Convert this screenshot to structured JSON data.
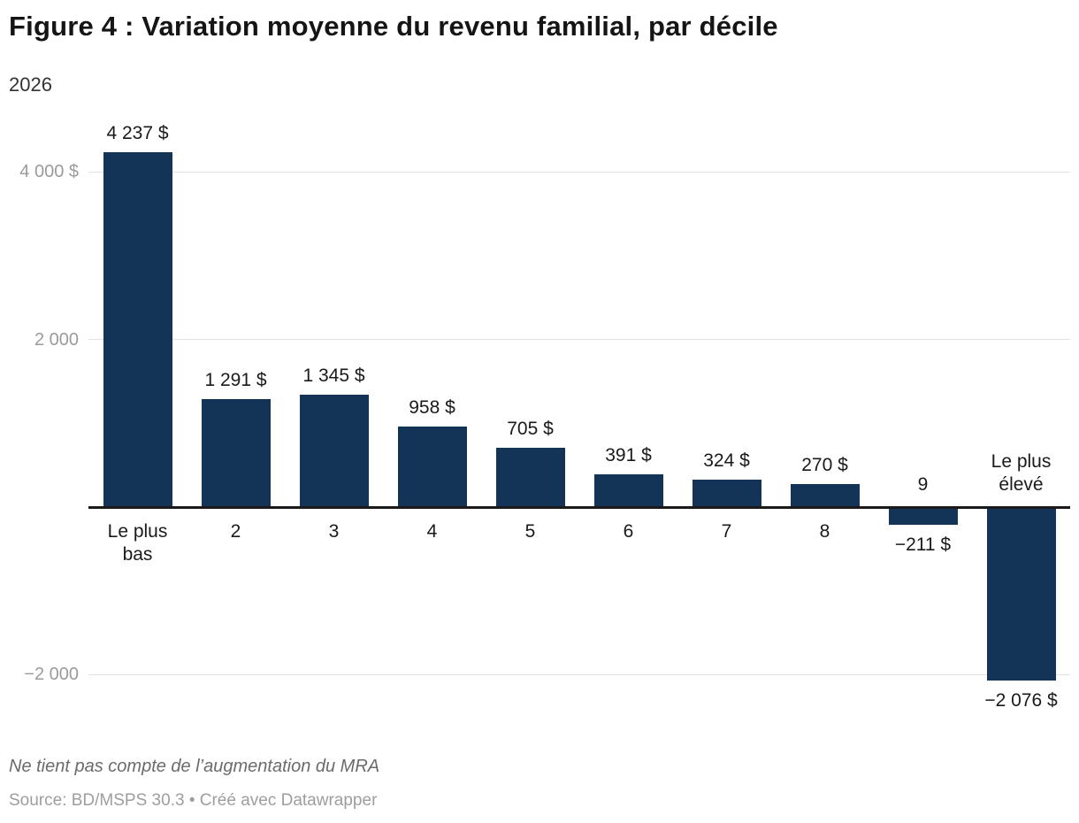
{
  "header": {
    "title": "Figure 4 : Variation moyenne du revenu familial, par décile",
    "subtitle": "2026"
  },
  "chart_data": {
    "type": "bar",
    "title": "Figure 4 : Variation moyenne du revenu familial, par décile",
    "subtitle": "2026",
    "categories": [
      "Le plus bas",
      "2",
      "3",
      "4",
      "5",
      "6",
      "7",
      "8",
      "9",
      "Le plus élevé"
    ],
    "values": [
      4237,
      1291,
      1345,
      958,
      705,
      391,
      324,
      270,
      -211,
      -2076
    ],
    "value_labels": [
      "4 237 $",
      "1 291 $",
      "1 345 $",
      "958 $",
      "705 $",
      "391 $",
      "324 $",
      "270 $",
      "−211 $",
      "−2 076 $"
    ],
    "yticks": [
      {
        "value": 4000,
        "label": "4 000 $"
      },
      {
        "value": 2000,
        "label": "2 000"
      },
      {
        "value": -2000,
        "label": "−2 000"
      }
    ],
    "ylim": [
      -2700,
      4600
    ],
    "xlabel": "",
    "ylabel": "",
    "grid": true,
    "legend_position": "none",
    "bar_color": "#133456"
  },
  "colors": {
    "bar": "#133456",
    "axis_line": "#1a1a1a",
    "gridline": "#e2e2e2",
    "tick_label": "#9b9b9b"
  },
  "footer": {
    "note": "Ne tient pas compte de l’augmentation du MRA",
    "source": "Source: BD/MSPS 30.3 • Créé avec Datawrapper"
  }
}
